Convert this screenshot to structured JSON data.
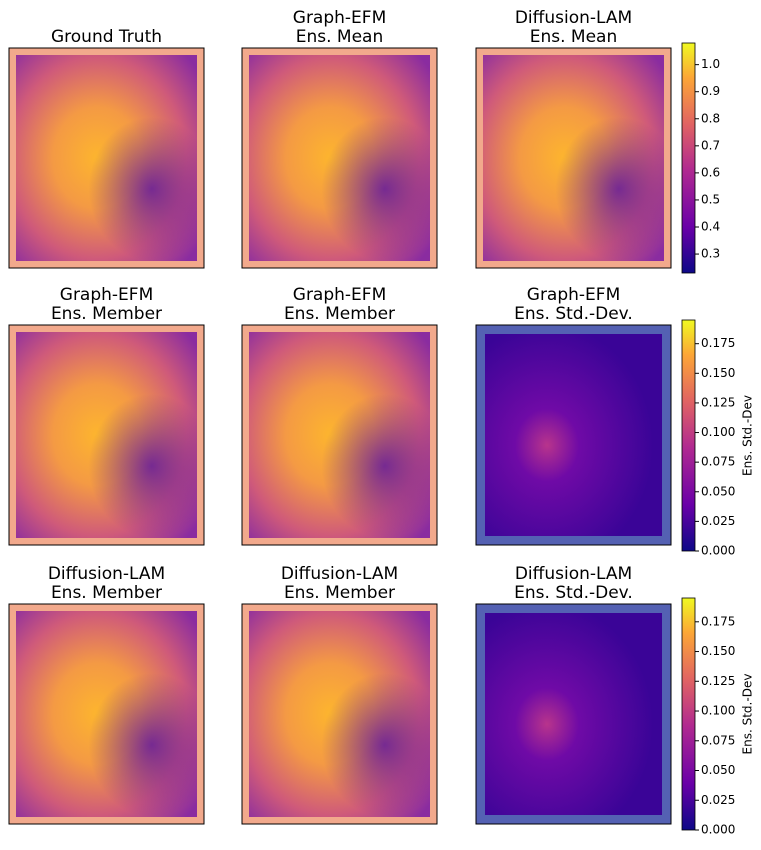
{
  "panels": [
    {
      "title": [
        "Ground Truth"
      ]
    },
    {
      "title": [
        "Graph-EFM",
        "Ens. Mean"
      ]
    },
    {
      "title": [
        "Diffusion-LAM",
        "Ens. Mean"
      ]
    },
    {
      "title": [
        "Graph-EFM",
        "Ens. Member"
      ]
    },
    {
      "title": [
        "Graph-EFM",
        "Ens. Member"
      ]
    },
    {
      "title": [
        "Graph-EFM",
        "Ens. Std.-Dev."
      ]
    },
    {
      "title": [
        "Diffusion-LAM",
        "Ens. Member"
      ]
    },
    {
      "title": [
        "Diffusion-LAM",
        "Ens. Member"
      ]
    },
    {
      "title": [
        "Diffusion-LAM",
        "Ens. Std.-Dev."
      ]
    }
  ],
  "colorbars": [
    {
      "ylim": [
        0.23,
        1.08
      ],
      "yticks": [
        0.3,
        0.4,
        0.5,
        0.6,
        0.7,
        0.8,
        0.9,
        {
          "value": 1.0,
          "label": "1.0"
        }
      ]
    },
    {
      "label": "Ens. Std.-Dev",
      "ylim": [
        0,
        0.195
      ],
      "yticks": [
        {
          "value": 0,
          "label": "0.000"
        },
        0.025,
        {
          "value": 0.05,
          "label": "0.050"
        },
        0.075,
        {
          "value": 0.1,
          "label": "0.100"
        },
        0.125,
        {
          "value": 0.15,
          "label": "0.150"
        },
        0.175
      ]
    },
    {
      "label": "Ens. Std.-Dev",
      "ylim": [
        0,
        0.195
      ],
      "yticks": [
        {
          "value": 0,
          "label": "0.000"
        },
        0.025,
        {
          "value": 0.05,
          "label": "0.050"
        },
        0.075,
        {
          "value": 0.1,
          "label": "0.100"
        },
        0.125,
        {
          "value": 0.15,
          "label": "0.150"
        },
        0.175
      ]
    }
  ]
}
